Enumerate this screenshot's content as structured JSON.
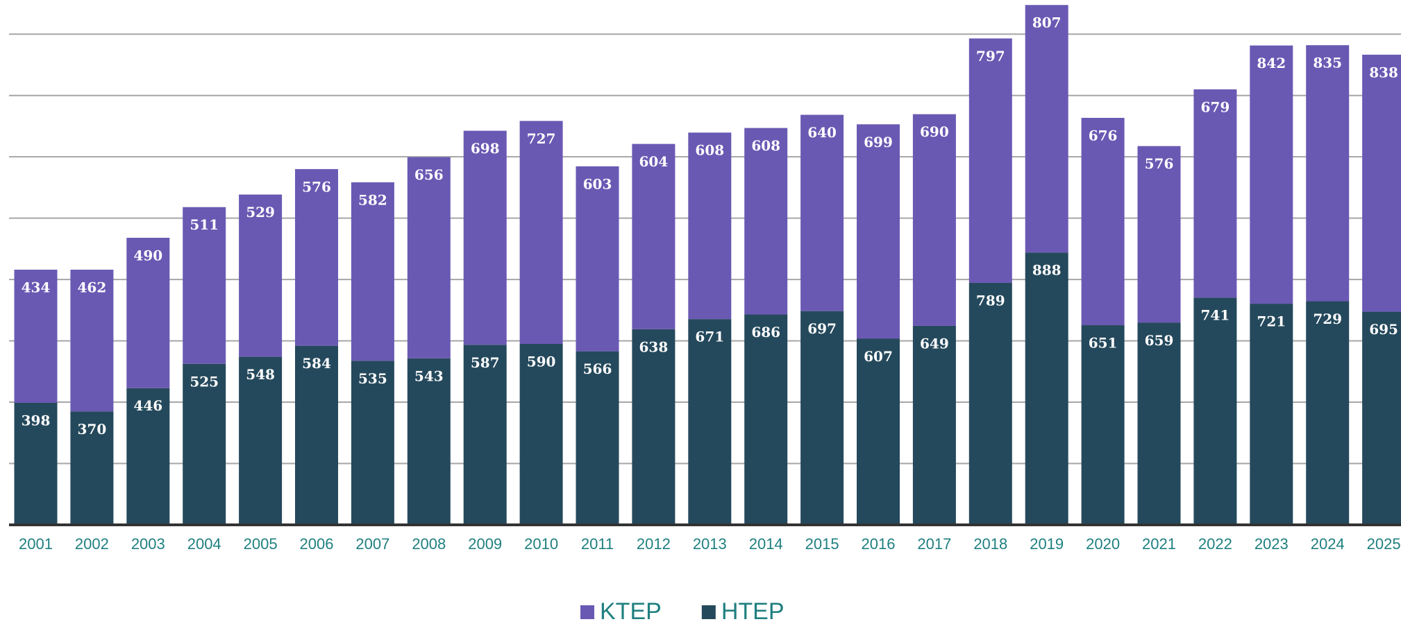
{
  "chart_data": {
    "type": "stacked_bar",
    "categories": [
      "2001",
      "2002",
      "2003",
      "2004",
      "2005",
      "2006",
      "2007",
      "2008",
      "2009",
      "2010",
      "2011",
      "2012",
      "2013",
      "2014",
      "2015",
      "2016",
      "2017",
      "2018",
      "2019",
      "2020",
      "2021",
      "2022",
      "2023",
      "2024",
      "2025"
    ],
    "series": [
      {
        "name": "KTEP",
        "color": "#6a59b3",
        "values": [
          434,
          462,
          490,
          511,
          529,
          576,
          582,
          656,
          698,
          727,
          603,
          604,
          608,
          608,
          640,
          699,
          690,
          797,
          807,
          676,
          576,
          679,
          842,
          835,
          838
        ]
      },
      {
        "name": "HTEP",
        "color": "#25495c",
        "values": [
          398,
          370,
          446,
          525,
          548,
          584,
          535,
          543,
          587,
          590,
          566,
          638,
          671,
          686,
          697,
          607,
          649,
          789,
          888,
          651,
          659,
          741,
          721,
          729,
          695
        ]
      }
    ],
    "ylim": [
      0,
      1700
    ],
    "yticks": [
      0,
      200,
      400,
      600,
      800,
      1000,
      1200,
      1400,
      1600
    ],
    "grid": true,
    "legend": "bottom"
  }
}
